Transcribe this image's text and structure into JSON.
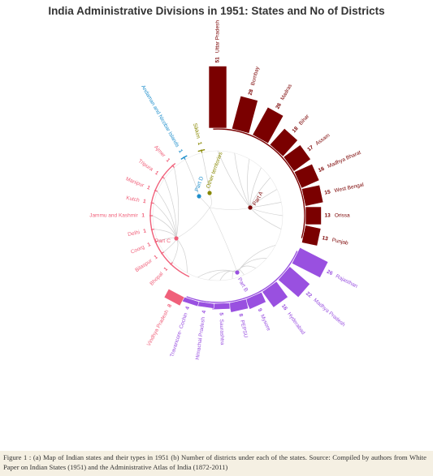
{
  "title": "India Administrative Divisions in 1951: States and No of Districts",
  "caption": "Figure 1 : (a) Map of Indian states and their types in 1951 (b) Number of districts under each of the states. Source: Compiled by authors from White Paper on Indian States (1951) and the Administrative Atlas of India (1872-2011)",
  "chart_data": {
    "type": "radial-bar",
    "title": "India Administrative Divisions in 1951: States and No of Districts",
    "groups": [
      {
        "name": "Part A",
        "color": "#7a0000",
        "states": [
          {
            "name": "Uttar Pradesh",
            "districts": 51
          },
          {
            "name": "Bombay",
            "districts": 28
          },
          {
            "name": "Madras",
            "districts": 26
          },
          {
            "name": "Bihar",
            "districts": 18
          },
          {
            "name": "Assam",
            "districts": 17
          },
          {
            "name": "Madhya Bharat",
            "districts": 16
          },
          {
            "name": "West Bengal",
            "districts": 15
          },
          {
            "name": "Orissa",
            "districts": 13
          },
          {
            "name": "Punjab",
            "districts": 13
          }
        ]
      },
      {
        "name": "Part B",
        "color": "#9950e0",
        "states": [
          {
            "name": "Rajasthan",
            "districts": 26
          },
          {
            "name": "Madhya Pradesh",
            "districts": 22
          },
          {
            "name": "Hyderabad",
            "districts": 16
          },
          {
            "name": "Mysore",
            "districts": 9
          },
          {
            "name": "PEPSU",
            "districts": 8
          },
          {
            "name": "Saurashtra",
            "districts": 5
          },
          {
            "name": "Himachal Pradesh",
            "districts": 4
          },
          {
            "name": "Travancore- Cochin",
            "districts": 4
          }
        ]
      },
      {
        "name": "Part C",
        "color": "#f0607a",
        "states": [
          {
            "name": "Vindhya Pradesh",
            "districts": 8
          },
          {
            "name": "Bhopal",
            "districts": 1
          },
          {
            "name": "Bilaspur",
            "districts": 1
          },
          {
            "name": "Coorg",
            "districts": 1
          },
          {
            "name": "Delhi",
            "districts": 1
          },
          {
            "name": "Jammu and Kashmir",
            "districts": 1
          },
          {
            "name": "Kutch",
            "districts": 1
          },
          {
            "name": "Manipur",
            "districts": 1
          },
          {
            "name": "Tripura",
            "districts": 1
          },
          {
            "name": "Ajmer",
            "districts": 1
          }
        ]
      },
      {
        "name": "Part D",
        "color": "#1f8fcc",
        "states": [
          {
            "name": "Andaman and Nicobar Islands",
            "districts": 1
          }
        ]
      },
      {
        "name": "Other territories",
        "color": "#888800",
        "states": [
          {
            "name": "Sikkim",
            "districts": 1
          }
        ]
      }
    ]
  }
}
